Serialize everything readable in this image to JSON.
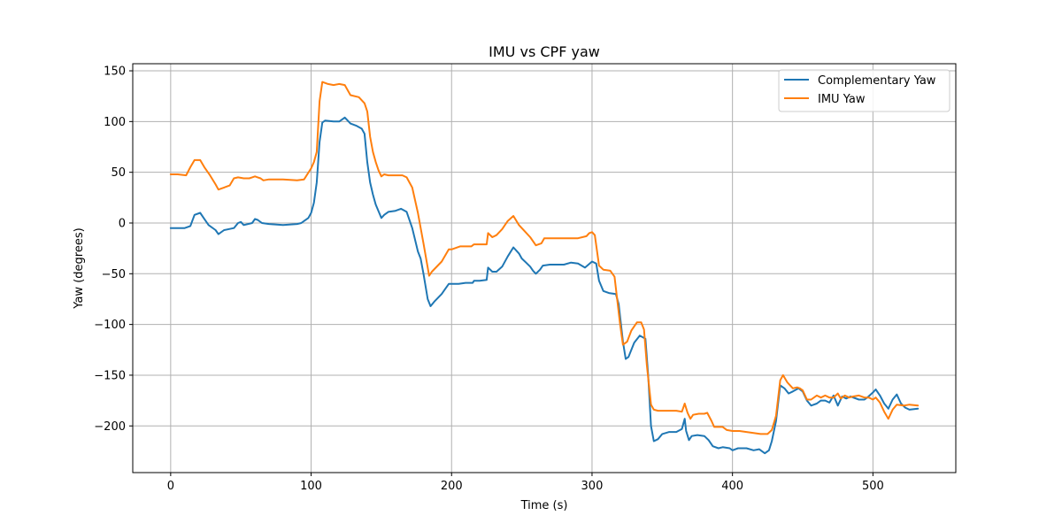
{
  "chart_data": {
    "type": "line",
    "title": "IMU vs CPF yaw",
    "xlabel": "Time (s)",
    "ylabel": "Yaw (degrees)",
    "xlim": [
      -27,
      559
    ],
    "ylim": [
      -246,
      157
    ],
    "xticks": [
      0,
      100,
      200,
      300,
      400,
      500
    ],
    "yticks": [
      -200,
      -150,
      -100,
      -50,
      0,
      50,
      100,
      150
    ],
    "grid": true,
    "legend_position": "top-right",
    "series": [
      {
        "name": "Complementary Yaw",
        "color": "#1f77b4",
        "points": [
          [
            0,
            -5
          ],
          [
            10,
            -5
          ],
          [
            14,
            -3
          ],
          [
            17,
            8
          ],
          [
            21,
            10
          ],
          [
            24,
            4
          ],
          [
            27,
            -2
          ],
          [
            32,
            -7
          ],
          [
            34,
            -11
          ],
          [
            38,
            -7
          ],
          [
            45,
            -5
          ],
          [
            48,
            0
          ],
          [
            50,
            1
          ],
          [
            52,
            -2
          ],
          [
            58,
            0
          ],
          [
            60,
            4
          ],
          [
            62,
            3
          ],
          [
            65,
            0
          ],
          [
            70,
            -1
          ],
          [
            80,
            -2
          ],
          [
            90,
            -1
          ],
          [
            93,
            0
          ],
          [
            95,
            2
          ],
          [
            98,
            5
          ],
          [
            100,
            10
          ],
          [
            102,
            20
          ],
          [
            104,
            40
          ],
          [
            106,
            80
          ],
          [
            108,
            99
          ],
          [
            110,
            101
          ],
          [
            116,
            100
          ],
          [
            120,
            100
          ],
          [
            124,
            104
          ],
          [
            128,
            98
          ],
          [
            132,
            96
          ],
          [
            136,
            93
          ],
          [
            138,
            88
          ],
          [
            140,
            60
          ],
          [
            142,
            40
          ],
          [
            144,
            28
          ],
          [
            146,
            18
          ],
          [
            150,
            5
          ],
          [
            152,
            8
          ],
          [
            155,
            11
          ],
          [
            160,
            12
          ],
          [
            164,
            14
          ],
          [
            168,
            11
          ],
          [
            172,
            -5
          ],
          [
            176,
            -28
          ],
          [
            178,
            -35
          ],
          [
            180,
            -50
          ],
          [
            183,
            -75
          ],
          [
            185,
            -82
          ],
          [
            188,
            -77
          ],
          [
            193,
            -70
          ],
          [
            195,
            -66
          ],
          [
            198,
            -60
          ],
          [
            205,
            -60
          ],
          [
            210,
            -59
          ],
          [
            215,
            -59
          ],
          [
            216,
            -57
          ],
          [
            220,
            -57
          ],
          [
            225,
            -56
          ],
          [
            226,
            -44
          ],
          [
            229,
            -48
          ],
          [
            232,
            -48
          ],
          [
            236,
            -43
          ],
          [
            240,
            -33
          ],
          [
            244,
            -24
          ],
          [
            248,
            -30
          ],
          [
            250,
            -35
          ],
          [
            253,
            -39
          ],
          [
            256,
            -43
          ],
          [
            258,
            -47
          ],
          [
            260,
            -50
          ],
          [
            263,
            -46
          ],
          [
            265,
            -42
          ],
          [
            270,
            -41
          ],
          [
            280,
            -41
          ],
          [
            285,
            -39
          ],
          [
            290,
            -40
          ],
          [
            295,
            -44
          ],
          [
            300,
            -38
          ],
          [
            303,
            -40
          ],
          [
            305,
            -57
          ],
          [
            308,
            -67
          ],
          [
            312,
            -69
          ],
          [
            317,
            -70
          ],
          [
            319,
            -80
          ],
          [
            322,
            -117
          ],
          [
            324,
            -134
          ],
          [
            326,
            -132
          ],
          [
            330,
            -118
          ],
          [
            334,
            -111
          ],
          [
            338,
            -114
          ],
          [
            340,
            -150
          ],
          [
            342,
            -200
          ],
          [
            344,
            -215
          ],
          [
            347,
            -213
          ],
          [
            350,
            -208
          ],
          [
            355,
            -206
          ],
          [
            360,
            -206
          ],
          [
            364,
            -203
          ],
          [
            366,
            -193
          ],
          [
            367,
            -205
          ],
          [
            369,
            -214
          ],
          [
            371,
            -210
          ],
          [
            375,
            -209
          ],
          [
            380,
            -210
          ],
          [
            383,
            -214
          ],
          [
            386,
            -220
          ],
          [
            390,
            -222
          ],
          [
            393,
            -221
          ],
          [
            398,
            -222
          ],
          [
            400,
            -224
          ],
          [
            404,
            -222
          ],
          [
            410,
            -222
          ],
          [
            415,
            -224
          ],
          [
            419,
            -223
          ],
          [
            423,
            -227
          ],
          [
            426,
            -224
          ],
          [
            428,
            -215
          ],
          [
            431,
            -195
          ],
          [
            434,
            -160
          ],
          [
            437,
            -163
          ],
          [
            440,
            -168
          ],
          [
            443,
            -166
          ],
          [
            447,
            -163
          ],
          [
            450,
            -166
          ],
          [
            453,
            -175
          ],
          [
            456,
            -180
          ],
          [
            460,
            -178
          ],
          [
            463,
            -175
          ],
          [
            466,
            -175
          ],
          [
            469,
            -177
          ],
          [
            472,
            -170
          ],
          [
            475,
            -180
          ],
          [
            478,
            -171
          ],
          [
            481,
            -173
          ],
          [
            484,
            -171
          ],
          [
            490,
            -174
          ],
          [
            494,
            -174
          ],
          [
            496,
            -172
          ],
          [
            500,
            -167
          ],
          [
            502,
            -164
          ],
          [
            505,
            -170
          ],
          [
            508,
            -178
          ],
          [
            511,
            -183
          ],
          [
            514,
            -174
          ],
          [
            517,
            -169
          ],
          [
            520,
            -178
          ],
          [
            523,
            -182
          ],
          [
            526,
            -184
          ],
          [
            532,
            -183
          ]
        ]
      },
      {
        "name": "IMU Yaw",
        "color": "#ff7f0e",
        "points": [
          [
            0,
            48
          ],
          [
            5,
            48
          ],
          [
            11,
            47
          ],
          [
            14,
            55
          ],
          [
            17,
            62
          ],
          [
            21,
            62
          ],
          [
            24,
            55
          ],
          [
            28,
            47
          ],
          [
            32,
            38
          ],
          [
            34,
            33
          ],
          [
            38,
            35
          ],
          [
            42,
            37
          ],
          [
            45,
            44
          ],
          [
            48,
            45
          ],
          [
            52,
            44
          ],
          [
            56,
            44
          ],
          [
            58,
            45
          ],
          [
            60,
            46
          ],
          [
            62,
            45
          ],
          [
            64,
            44
          ],
          [
            66,
            42
          ],
          [
            70,
            43
          ],
          [
            80,
            43
          ],
          [
            90,
            42
          ],
          [
            95,
            43
          ],
          [
            100,
            54
          ],
          [
            102,
            60
          ],
          [
            104,
            70
          ],
          [
            106,
            120
          ],
          [
            108,
            139
          ],
          [
            112,
            137
          ],
          [
            116,
            136
          ],
          [
            120,
            137
          ],
          [
            124,
            136
          ],
          [
            128,
            126
          ],
          [
            134,
            124
          ],
          [
            138,
            118
          ],
          [
            140,
            110
          ],
          [
            142,
            85
          ],
          [
            144,
            70
          ],
          [
            146,
            60
          ],
          [
            148,
            52
          ],
          [
            150,
            46
          ],
          [
            152,
            48
          ],
          [
            155,
            47
          ],
          [
            160,
            47
          ],
          [
            165,
            47
          ],
          [
            168,
            45
          ],
          [
            172,
            35
          ],
          [
            176,
            10
          ],
          [
            180,
            -20
          ],
          [
            184,
            -52
          ],
          [
            186,
            -48
          ],
          [
            193,
            -38
          ],
          [
            198,
            -26
          ],
          [
            200,
            -26
          ],
          [
            206,
            -23
          ],
          [
            214,
            -23
          ],
          [
            216,
            -21
          ],
          [
            220,
            -21
          ],
          [
            225,
            -21
          ],
          [
            226,
            -10
          ],
          [
            229,
            -14
          ],
          [
            232,
            -12
          ],
          [
            236,
            -6
          ],
          [
            240,
            2
          ],
          [
            244,
            7
          ],
          [
            248,
            -2
          ],
          [
            252,
            -8
          ],
          [
            256,
            -14
          ],
          [
            260,
            -22
          ],
          [
            264,
            -20
          ],
          [
            266,
            -15
          ],
          [
            270,
            -15
          ],
          [
            280,
            -15
          ],
          [
            290,
            -15
          ],
          [
            296,
            -13
          ],
          [
            298,
            -10
          ],
          [
            300,
            -9
          ],
          [
            302,
            -12
          ],
          [
            305,
            -42
          ],
          [
            308,
            -46
          ],
          [
            313,
            -47
          ],
          [
            316,
            -53
          ],
          [
            320,
            -100
          ],
          [
            322,
            -120
          ],
          [
            325,
            -117
          ],
          [
            328,
            -106
          ],
          [
            332,
            -98
          ],
          [
            335,
            -98
          ],
          [
            337,
            -105
          ],
          [
            339,
            -140
          ],
          [
            342,
            -179
          ],
          [
            344,
            -184
          ],
          [
            347,
            -185
          ],
          [
            360,
            -185
          ],
          [
            364,
            -186
          ],
          [
            366,
            -178
          ],
          [
            368,
            -187
          ],
          [
            370,
            -193
          ],
          [
            372,
            -189
          ],
          [
            376,
            -188
          ],
          [
            380,
            -188
          ],
          [
            382,
            -187
          ],
          [
            385,
            -195
          ],
          [
            387,
            -201
          ],
          [
            393,
            -201
          ],
          [
            396,
            -204
          ],
          [
            400,
            -205
          ],
          [
            405,
            -205
          ],
          [
            410,
            -206
          ],
          [
            415,
            -207
          ],
          [
            420,
            -208
          ],
          [
            425,
            -208
          ],
          [
            428,
            -204
          ],
          [
            431,
            -190
          ],
          [
            434,
            -155
          ],
          [
            436,
            -150
          ],
          [
            439,
            -157
          ],
          [
            443,
            -163
          ],
          [
            446,
            -162
          ],
          [
            448,
            -163
          ],
          [
            450,
            -165
          ],
          [
            453,
            -174
          ],
          [
            456,
            -174
          ],
          [
            460,
            -170
          ],
          [
            463,
            -172
          ],
          [
            466,
            -170
          ],
          [
            469,
            -172
          ],
          [
            472,
            -172
          ],
          [
            475,
            -168
          ],
          [
            477,
            -173
          ],
          [
            480,
            -170
          ],
          [
            483,
            -172
          ],
          [
            486,
            -171
          ],
          [
            490,
            -170
          ],
          [
            494,
            -172
          ],
          [
            497,
            -172
          ],
          [
            500,
            -174
          ],
          [
            502,
            -172
          ],
          [
            505,
            -177
          ],
          [
            508,
            -186
          ],
          [
            511,
            -193
          ],
          [
            514,
            -184
          ],
          [
            517,
            -179
          ],
          [
            522,
            -180
          ],
          [
            526,
            -179
          ],
          [
            532,
            -180
          ]
        ]
      }
    ]
  }
}
